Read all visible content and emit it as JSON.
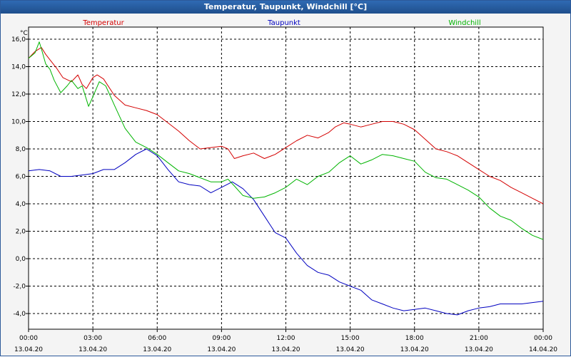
{
  "window": {
    "title": "Temperatur, Taupunkt, Windchill [°C]"
  },
  "chart_data": {
    "type": "line",
    "ylabel": "°C",
    "ylim": [
      -5,
      17
    ],
    "yticks": [
      16,
      14,
      12,
      10,
      8,
      6,
      4,
      2,
      0,
      -2,
      -4
    ],
    "ytick_labels": [
      "16,0",
      "14,0",
      "12,0",
      "10,0",
      "8,0",
      "6,0",
      "4,0",
      "2,0",
      "0,0",
      "-2,0",
      "-4,0"
    ],
    "xlim": [
      0,
      24
    ],
    "xticks": [
      0,
      3,
      6,
      9,
      12,
      15,
      18,
      21,
      24
    ],
    "xtick_times": [
      "00:00",
      "03:00",
      "06:00",
      "09:00",
      "12:00",
      "15:00",
      "18:00",
      "21:00",
      "00:00"
    ],
    "xtick_dates": [
      "13.04.20",
      "13.04.20",
      "13.04.20",
      "13.04.20",
      "13.04.20",
      "13.04.20",
      "13.04.20",
      "13.04.20",
      "14.04.20"
    ],
    "grid": true,
    "legend_position": "top",
    "series": [
      {
        "name": "Temperatur",
        "color": "#d40000",
        "x": [
          0,
          0.3,
          0.6,
          0.8,
          1.0,
          1.3,
          1.6,
          2.0,
          2.3,
          2.5,
          2.7,
          3.0,
          3.2,
          3.5,
          4.0,
          4.5,
          5.0,
          5.5,
          6.0,
          6.5,
          7.0,
          7.5,
          8.0,
          8.5,
          9.0,
          9.3,
          9.6,
          10.0,
          10.5,
          11.0,
          11.5,
          12.0,
          12.5,
          13.0,
          13.5,
          14.0,
          14.3,
          14.7,
          15.0,
          15.5,
          16.0,
          16.5,
          17.0,
          17.5,
          18.0,
          18.5,
          19.0,
          19.5,
          20.0,
          20.5,
          21.0,
          21.5,
          22.0,
          22.5,
          23.0,
          23.5,
          24.0
        ],
        "y": [
          14.6,
          15.1,
          15.4,
          14.9,
          14.5,
          13.9,
          13.2,
          12.9,
          13.4,
          12.7,
          12.4,
          13.2,
          13.4,
          13.1,
          11.9,
          11.2,
          11.0,
          10.8,
          10.5,
          9.9,
          9.3,
          8.6,
          8.0,
          8.1,
          8.2,
          8.0,
          7.3,
          7.5,
          7.7,
          7.3,
          7.6,
          8.1,
          8.6,
          9.0,
          8.8,
          9.2,
          9.6,
          9.9,
          9.8,
          9.6,
          9.8,
          10.0,
          10.0,
          9.8,
          9.4,
          8.7,
          8.0,
          7.8,
          7.5,
          7.0,
          6.5,
          6.0,
          5.7,
          5.2,
          4.8,
          4.4,
          4.0
        ]
      },
      {
        "name": "Taupunkt",
        "color": "#0000c0",
        "x": [
          0,
          0.5,
          1.0,
          1.5,
          2.0,
          2.5,
          3.0,
          3.5,
          4.0,
          4.5,
          5.0,
          5.5,
          6.0,
          6.5,
          7.0,
          7.5,
          8.0,
          8.5,
          9.0,
          9.5,
          10.0,
          10.5,
          11.0,
          11.5,
          12.0,
          12.5,
          13.0,
          13.5,
          14.0,
          14.5,
          15.0,
          15.5,
          16.0,
          16.5,
          17.0,
          17.5,
          18.0,
          18.5,
          19.0,
          19.5,
          20.0,
          20.5,
          21.0,
          21.5,
          22.0,
          22.5,
          23.0,
          23.5,
          24.0
        ],
        "y": [
          6.4,
          6.5,
          6.4,
          6.0,
          6.0,
          6.1,
          6.2,
          6.5,
          6.5,
          7.0,
          7.6,
          8.0,
          7.5,
          6.5,
          5.6,
          5.4,
          5.3,
          4.8,
          5.2,
          5.6,
          5.1,
          4.3,
          3.1,
          1.9,
          1.5,
          0.4,
          -0.5,
          -1.0,
          -1.2,
          -1.7,
          -2.0,
          -2.3,
          -3.0,
          -3.3,
          -3.6,
          -3.8,
          -3.7,
          -3.6,
          -3.8,
          -4.0,
          -4.1,
          -3.8,
          -3.6,
          -3.5,
          -3.3,
          -3.3,
          -3.3,
          -3.2,
          -3.1
        ]
      },
      {
        "name": "Windchill",
        "color": "#00b400",
        "x": [
          0,
          0.3,
          0.5,
          0.6,
          0.8,
          1.0,
          1.2,
          1.5,
          1.8,
          2.0,
          2.3,
          2.5,
          2.8,
          3.0,
          3.3,
          3.6,
          4.0,
          4.5,
          5.0,
          5.5,
          6.0,
          6.5,
          7.0,
          7.5,
          8.0,
          8.5,
          9.0,
          9.3,
          9.6,
          10.0,
          10.5,
          11.0,
          11.5,
          12.0,
          12.5,
          13.0,
          13.5,
          14.0,
          14.5,
          15.0,
          15.5,
          16.0,
          16.5,
          17.0,
          17.5,
          18.0,
          18.5,
          19.0,
          19.5,
          20.0,
          20.5,
          21.0,
          21.5,
          22.0,
          22.5,
          23.0,
          23.5,
          24.0
        ],
        "y": [
          14.6,
          15.0,
          15.8,
          15.3,
          14.2,
          13.8,
          13.0,
          12.1,
          12.6,
          13.0,
          12.4,
          12.6,
          11.1,
          11.8,
          12.9,
          12.6,
          11.2,
          9.5,
          8.5,
          8.1,
          7.6,
          7.0,
          6.4,
          6.2,
          5.9,
          5.6,
          5.6,
          5.8,
          5.3,
          4.6,
          4.4,
          4.5,
          4.8,
          5.2,
          5.8,
          5.4,
          6.0,
          6.3,
          7.0,
          7.5,
          6.9,
          7.2,
          7.6,
          7.5,
          7.3,
          7.1,
          6.3,
          5.9,
          5.8,
          5.4,
          5.0,
          4.5,
          3.7,
          3.1,
          2.8,
          2.2,
          1.7,
          1.4
        ]
      }
    ]
  }
}
